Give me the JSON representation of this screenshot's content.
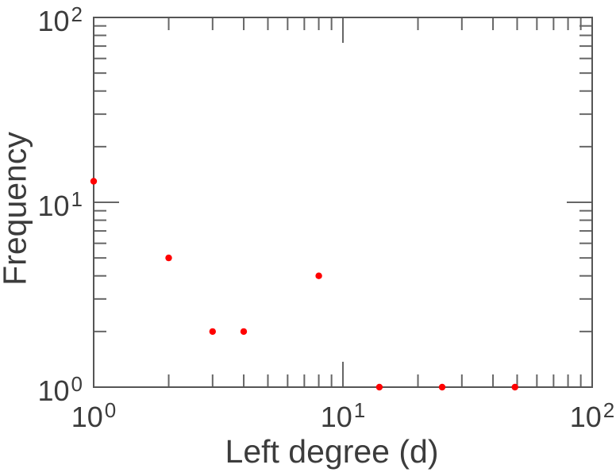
{
  "figure": {
    "background_color": "#ffffff",
    "frame_color": "#555555",
    "tick_color": "#666666",
    "text_color": "#3c3c3c"
  },
  "chart_data": {
    "type": "scatter",
    "title": "",
    "xlabel": "Left degree (d)",
    "ylabel": "Frequency",
    "x_scale": "log",
    "y_scale": "log",
    "xlim": [
      1,
      100
    ],
    "ylim": [
      1,
      100
    ],
    "grid": false,
    "legend": false,
    "x_major_ticks": [
      1,
      10,
      100
    ],
    "y_major_ticks": [
      1,
      10,
      100
    ],
    "x_minor_ticks": [
      2,
      3,
      4,
      5,
      6,
      7,
      8,
      9,
      20,
      30,
      40,
      50,
      60,
      70,
      80,
      90
    ],
    "y_minor_ticks": [
      2,
      3,
      4,
      5,
      6,
      7,
      8,
      9,
      20,
      30,
      40,
      50,
      60,
      70,
      80,
      90
    ],
    "x_tick_labels": [
      {
        "mantissa": "10",
        "exponent": "0",
        "value": 1
      },
      {
        "mantissa": "10",
        "exponent": "1",
        "value": 10
      },
      {
        "mantissa": "10",
        "exponent": "2",
        "value": 100
      }
    ],
    "y_tick_labels": [
      {
        "mantissa": "10",
        "exponent": "0",
        "value": 1
      },
      {
        "mantissa": "10",
        "exponent": "1",
        "value": 10
      },
      {
        "mantissa": "10",
        "exponent": "2",
        "value": 100
      }
    ],
    "series": [
      {
        "name": "frequency-points",
        "marker": "circle",
        "color": "#ff0000",
        "points": [
          {
            "x": 1,
            "y": 13
          },
          {
            "x": 2,
            "y": 5
          },
          {
            "x": 3,
            "y": 2
          },
          {
            "x": 4,
            "y": 2
          },
          {
            "x": 8,
            "y": 4
          },
          {
            "x": 14,
            "y": 1
          },
          {
            "x": 25,
            "y": 1
          },
          {
            "x": 49,
            "y": 1
          }
        ]
      }
    ]
  }
}
